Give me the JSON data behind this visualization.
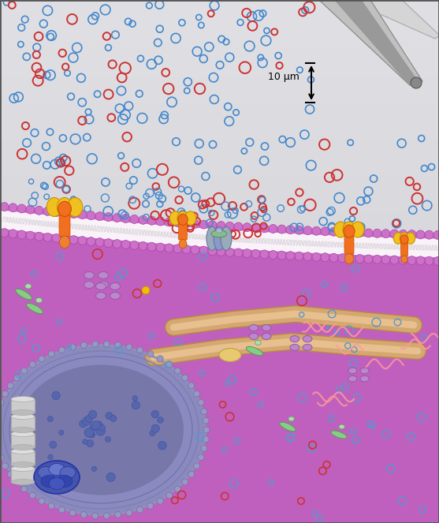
{
  "fig_width": 5.57,
  "fig_height": 6.63,
  "dpi": 100,
  "border_color": "#555555",
  "blue_dot_color": "#4488cc",
  "red_dot_color": "#cc3333",
  "scale_label": "10 μm",
  "membrane_bead_color": "#cc70c8",
  "membrane_bead_edge": "#aa44aa",
  "cytoplasm_color": "#c080c0",
  "cytoplasm_inner": "#b860b8",
  "nucleus_color": "#8888bb",
  "nucleus_ring_color": "#7070aa",
  "nucleus_inner": "#7777aa",
  "er_color": "#d4a870",
  "er_inner": "#e8c090",
  "extracell_bg": "#d0d0d8",
  "pink_filament": "#ff9999",
  "green_protein": "#88cc88",
  "purple_protein": "#bb88cc",
  "pipette_light": "#d5d5d5",
  "pipette_mid": "#c0c0c0",
  "pipette_dark": "#999999"
}
